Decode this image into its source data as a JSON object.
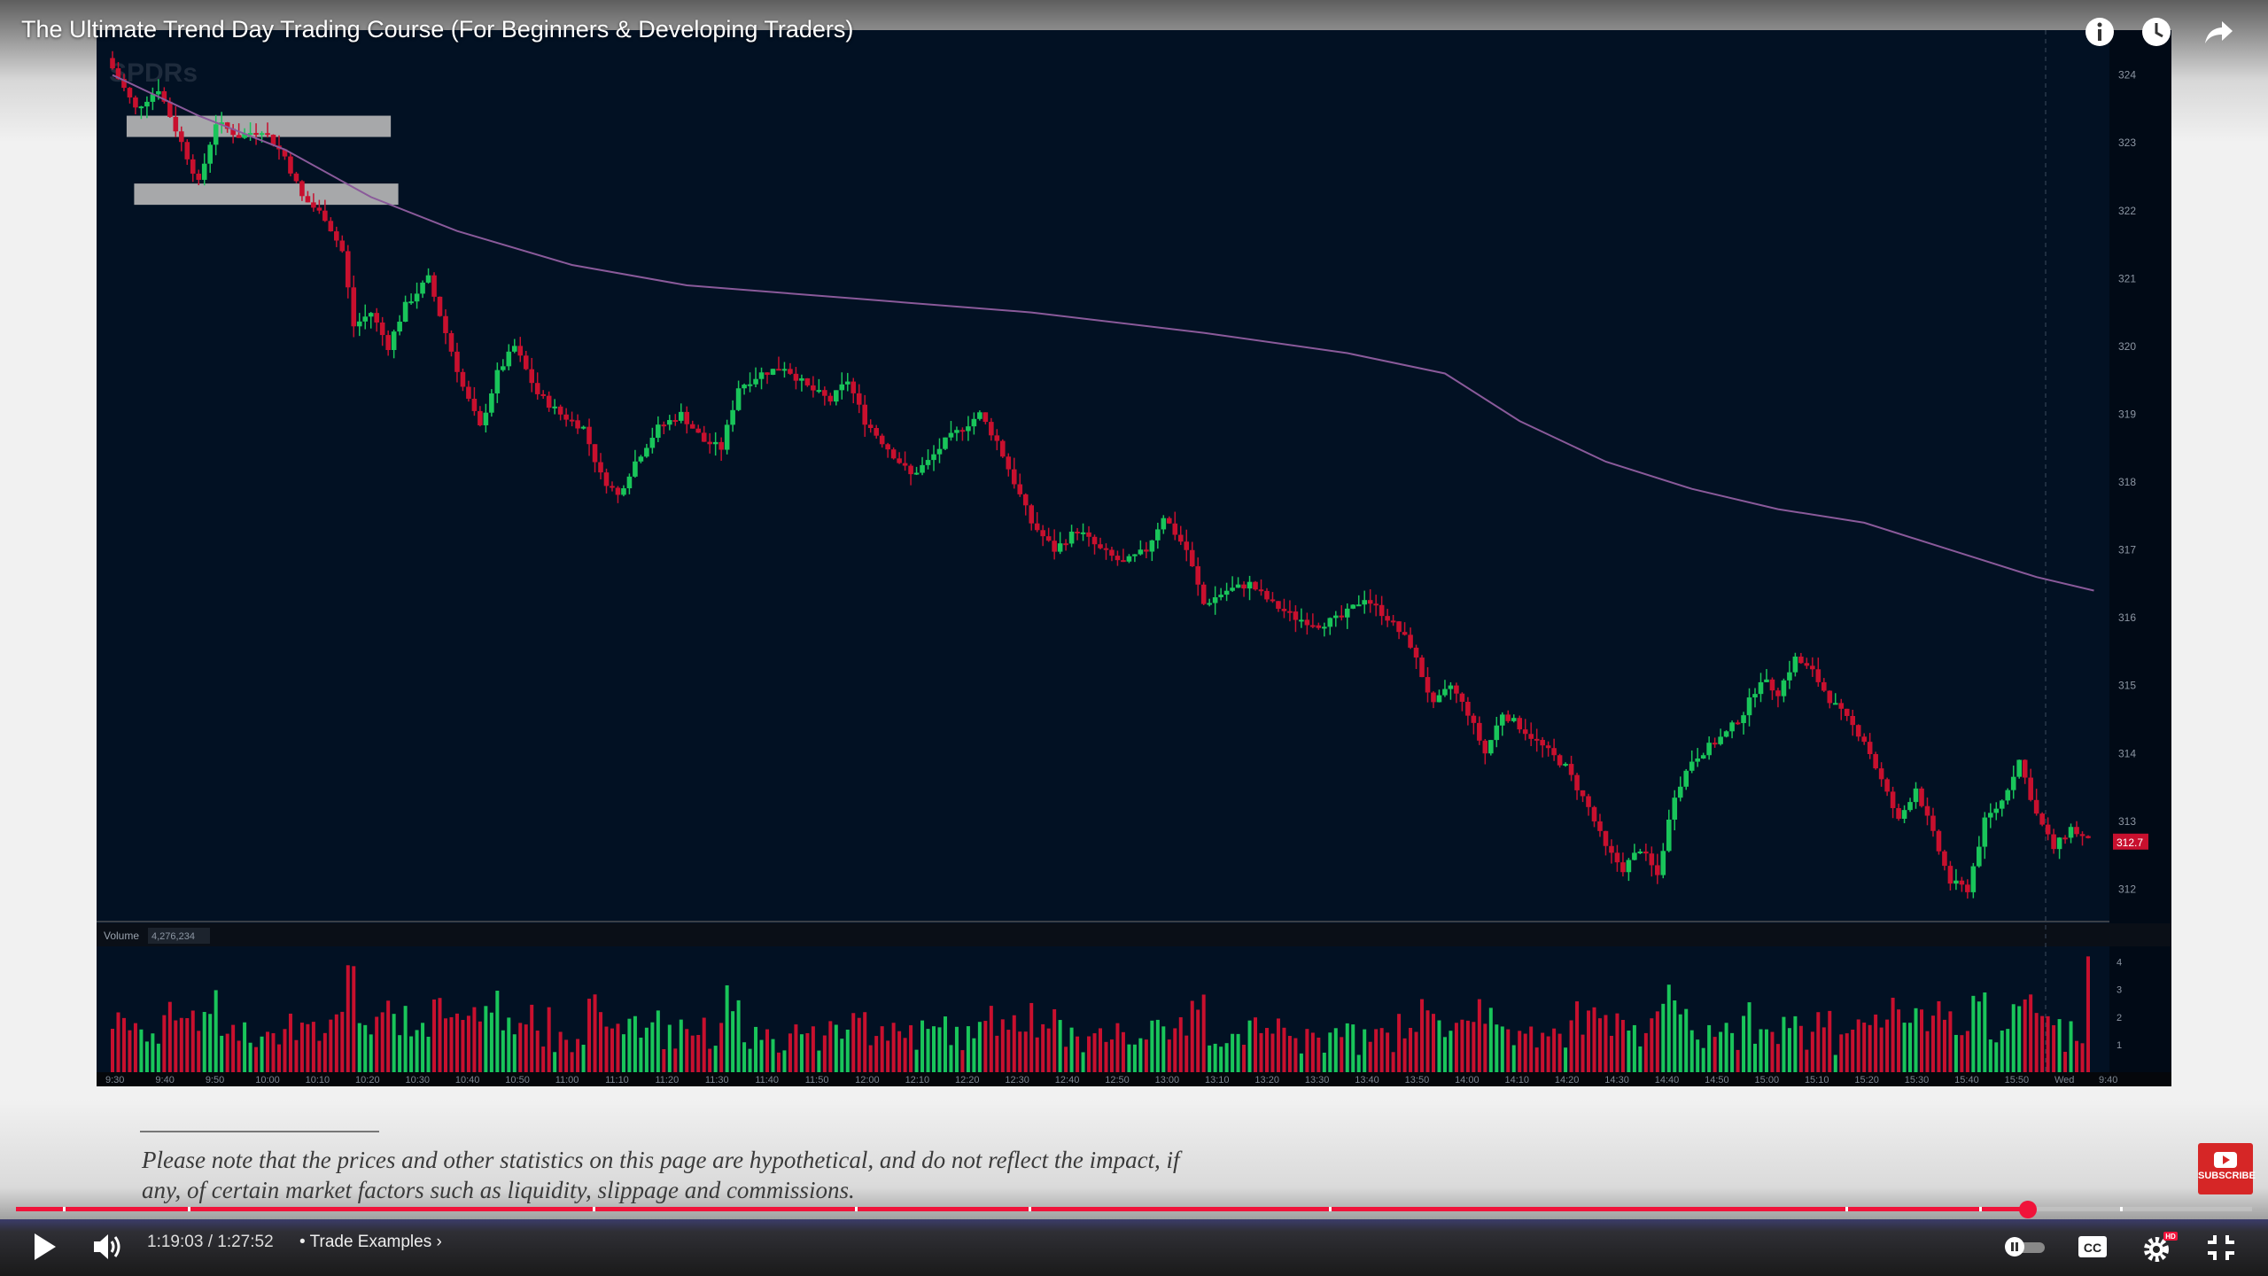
{
  "video": {
    "title": "The Ultimate Trend Day Trading Course (For Beginners & Developing Traders)",
    "time_current": "1:19:03",
    "time_total": "1:27:52",
    "time_separator": "/",
    "chapter_label": "Trade Examples",
    "chapter_prefix": "•",
    "progress_fraction": 0.8997,
    "hd_badge": "HD",
    "subscribe_label": "SUBSCRIBE",
    "chapter_markers": [
      0.021,
      0.077,
      0.258,
      0.375,
      0.453,
      0.587,
      0.818,
      0.878,
      0.941
    ]
  },
  "icons": {
    "top": [
      "info-icon",
      "watch-later-icon",
      "share-icon"
    ],
    "controls": [
      "play-icon",
      "volume-icon",
      "autoplay-toggle-icon",
      "captions-icon",
      "settings-icon",
      "exit-fullscreen-icon"
    ]
  },
  "colors": {
    "progress": "#f0133a",
    "chart_bg": "#021123",
    "bull": "#19c55a",
    "bear": "#c8102e",
    "vwap": "#8a5a9a",
    "price_tag": "#c8102e"
  },
  "disclaimer": "Please note that the prices and other statistics on this page are hypothetical, and do not reflect the impact, if any, of certain market factors such as liquidity, slippage and commissions.",
  "chart_data": {
    "type": "candlestick",
    "watermark": "SPDRs",
    "price_axis_ticks": [
      "324",
      "323",
      "322",
      "321",
      "320",
      "319",
      "318",
      "317",
      "316",
      "315",
      "314",
      "313",
      "312"
    ],
    "ylim": [
      311.6,
      324.4
    ],
    "current_price_label": "312.7",
    "current_price": 312.7,
    "volume_label": "Volume",
    "volume_value": "4,276,234",
    "volume_axis_ticks": [
      "4",
      "3",
      "2",
      "1"
    ],
    "time_axis_ticks": [
      "9:30",
      "9:40",
      "9:50",
      "10:00",
      "10:10",
      "10:20",
      "10:30",
      "10:40",
      "10:50",
      "11:00",
      "11:10",
      "11:20",
      "11:30",
      "11:40",
      "11:50",
      "12:00",
      "12:10",
      "12:20",
      "12:30",
      "12:40",
      "12:50",
      "13:00",
      "13:10",
      "13:20",
      "13:30",
      "13:40",
      "13:50",
      "14:00",
      "14:10",
      "14:20",
      "14:30",
      "14:40",
      "14:50",
      "15:00",
      "15:10",
      "15:20",
      "15:30",
      "15:40",
      "15:50",
      "Wed",
      "9:40"
    ],
    "price_path": [
      [
        0,
        324.1
      ],
      [
        4,
        323.5
      ],
      [
        8,
        323.8
      ],
      [
        12,
        323.0
      ],
      [
        15,
        322.4
      ],
      [
        18,
        323.3
      ],
      [
        22,
        323.1
      ],
      [
        26,
        323.2
      ],
      [
        30,
        322.8
      ],
      [
        33,
        322.2
      ],
      [
        37,
        321.9
      ],
      [
        40,
        321.4
      ],
      [
        42,
        320.3
      ],
      [
        45,
        320.5
      ],
      [
        48,
        320.0
      ],
      [
        51,
        320.6
      ],
      [
        55,
        321.0
      ],
      [
        58,
        320.2
      ],
      [
        61,
        319.4
      ],
      [
        64,
        318.8
      ],
      [
        67,
        319.6
      ],
      [
        70,
        320.0
      ],
      [
        74,
        319.3
      ],
      [
        78,
        319.0
      ],
      [
        82,
        318.8
      ],
      [
        85,
        318.1
      ],
      [
        88,
        317.8
      ],
      [
        91,
        318.3
      ],
      [
        95,
        318.8
      ],
      [
        99,
        319.0
      ],
      [
        103,
        318.6
      ],
      [
        106,
        318.5
      ],
      [
        109,
        319.4
      ],
      [
        113,
        319.6
      ],
      [
        117,
        319.7
      ],
      [
        121,
        319.4
      ],
      [
        125,
        319.2
      ],
      [
        128,
        319.5
      ],
      [
        131,
        318.9
      ],
      [
        135,
        318.5
      ],
      [
        139,
        318.1
      ],
      [
        142,
        318.3
      ],
      [
        145,
        318.6
      ],
      [
        148,
        318.8
      ],
      [
        151,
        319.0
      ],
      [
        154,
        318.6
      ],
      [
        157,
        318.0
      ],
      [
        160,
        317.4
      ],
      [
        164,
        317.0
      ],
      [
        168,
        317.3
      ],
      [
        172,
        317.0
      ],
      [
        176,
        316.8
      ],
      [
        180,
        317.0
      ],
      [
        183,
        317.5
      ],
      [
        187,
        317.0
      ],
      [
        190,
        316.2
      ],
      [
        194,
        316.4
      ],
      [
        198,
        316.5
      ],
      [
        202,
        316.2
      ],
      [
        206,
        316.0
      ],
      [
        210,
        315.9
      ],
      [
        214,
        316.0
      ],
      [
        218,
        316.3
      ],
      [
        222,
        316.0
      ],
      [
        226,
        315.6
      ],
      [
        230,
        314.7
      ],
      [
        233,
        315.0
      ],
      [
        236,
        314.6
      ],
      [
        239,
        314.0
      ],
      [
        242,
        314.6
      ],
      [
        245,
        314.4
      ],
      [
        249,
        314.1
      ],
      [
        253,
        313.8
      ],
      [
        257,
        313.2
      ],
      [
        260,
        312.6
      ],
      [
        263,
        312.3
      ],
      [
        266,
        312.6
      ],
      [
        269,
        312.2
      ],
      [
        272,
        313.4
      ],
      [
        275,
        313.9
      ],
      [
        278,
        314.1
      ],
      [
        281,
        314.3
      ],
      [
        284,
        314.6
      ],
      [
        287,
        315.1
      ],
      [
        290,
        314.9
      ],
      [
        293,
        315.4
      ],
      [
        296,
        315.2
      ],
      [
        299,
        314.8
      ],
      [
        302,
        314.5
      ],
      [
        305,
        314.2
      ],
      [
        308,
        313.6
      ],
      [
        311,
        313.0
      ],
      [
        314,
        313.5
      ],
      [
        317,
        312.8
      ],
      [
        320,
        312.1
      ],
      [
        323,
        312.0
      ],
      [
        326,
        313.0
      ],
      [
        329,
        313.3
      ],
      [
        332,
        313.9
      ],
      [
        335,
        313.1
      ],
      [
        338,
        312.6
      ],
      [
        341,
        312.9
      ],
      [
        344,
        312.7
      ]
    ],
    "vwap": [
      [
        0,
        324.0
      ],
      [
        15,
        323.4
      ],
      [
        30,
        322.9
      ],
      [
        45,
        322.2
      ],
      [
        60,
        321.7
      ],
      [
        80,
        321.2
      ],
      [
        100,
        320.9
      ],
      [
        130,
        320.7
      ],
      [
        160,
        320.5
      ],
      [
        190,
        320.2
      ],
      [
        215,
        319.9
      ],
      [
        232,
        319.6
      ],
      [
        245,
        318.9
      ],
      [
        260,
        318.3
      ],
      [
        275,
        317.9
      ],
      [
        290,
        317.6
      ],
      [
        305,
        317.4
      ],
      [
        320,
        317.0
      ],
      [
        335,
        316.6
      ],
      [
        345,
        316.4
      ]
    ]
  }
}
